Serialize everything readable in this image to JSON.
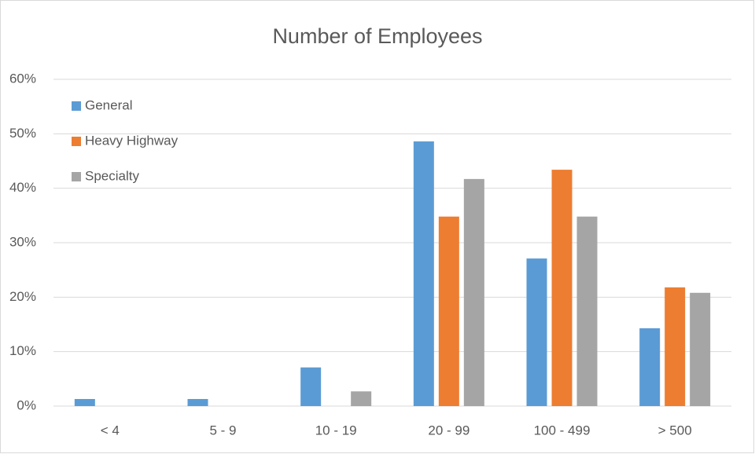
{
  "chart_data": {
    "type": "bar",
    "title": "Number of Employees",
    "categories": [
      "< 4",
      "5 - 9",
      "10 - 19",
      "20 - 99",
      "100 - 499",
      "> 500"
    ],
    "series": [
      {
        "name": "General",
        "color": "#5b9bd5",
        "values": [
          1.3,
          1.3,
          7.1,
          48.6,
          27.1,
          14.3
        ]
      },
      {
        "name": "Heavy Highway",
        "color": "#ed7d31",
        "values": [
          0,
          0,
          0,
          34.8,
          43.4,
          21.8
        ]
      },
      {
        "name": "Specialty",
        "color": "#a5a5a5",
        "values": [
          0,
          0,
          2.7,
          41.7,
          34.8,
          20.8
        ]
      }
    ],
    "ylim": [
      0,
      60
    ],
    "yticks": [
      {
        "value": 0,
        "label": "0%"
      },
      {
        "value": 10,
        "label": "10%"
      },
      {
        "value": 20,
        "label": "20%"
      },
      {
        "value": 30,
        "label": "30%"
      },
      {
        "value": 40,
        "label": "40%"
      },
      {
        "value": 50,
        "label": "50%"
      },
      {
        "value": 60,
        "label": "60%"
      }
    ],
    "grid": true,
    "legend": "top-left"
  }
}
